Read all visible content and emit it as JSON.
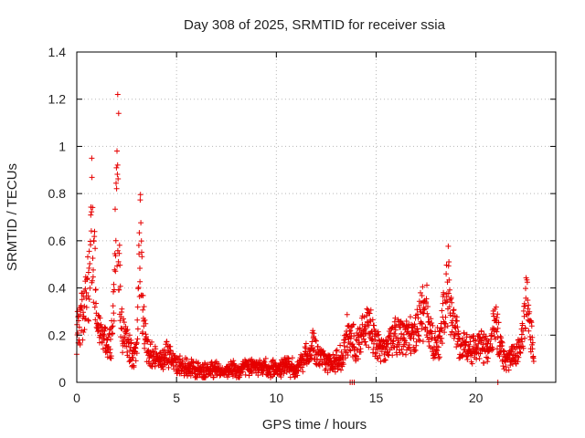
{
  "chart_data": {
    "type": "scatter",
    "title": "Day 308 of 2025, SRMTID for receiver ssia",
    "xlabel": "GPS time / hours",
    "ylabel": "SRMTID / TECUs",
    "xlim": [
      0,
      24
    ],
    "ylim": [
      0,
      1.4
    ],
    "xticks": [
      0,
      5,
      10,
      15,
      20
    ],
    "yticks": [
      0,
      0.2,
      0.4,
      0.6,
      0.8,
      1,
      1.2,
      1.4
    ],
    "xtick_labels": [
      "0",
      "5",
      "10",
      "15",
      "20"
    ],
    "ytick_labels": [
      "0",
      "0.2",
      "0.4",
      "0.6",
      "0.8",
      "1",
      "1.2",
      "1.4"
    ],
    "grid": true,
    "marker": "+",
    "color": "#e60000",
    "series": [
      {
        "name": "SRMTID",
        "envelope": {
          "x": [
            0,
            0.2,
            0.4,
            0.6,
            0.7,
            0.75,
            0.85,
            1.0,
            1.2,
            1.4,
            1.6,
            1.8,
            1.9,
            2.0,
            2.1,
            2.2,
            2.4,
            2.6,
            2.8,
            3.0,
            3.1,
            3.2,
            3.3,
            3.5,
            3.8,
            4.2,
            4.5,
            5,
            6,
            7,
            8,
            9,
            10,
            10.5,
            11,
            11.5,
            11.8,
            12.2,
            12.8,
            13.3,
            13.6,
            14,
            14.4,
            14.7,
            15,
            15.5,
            16,
            16.5,
            17,
            17.3,
            17.5,
            17.8,
            18.2,
            18.5,
            18.6,
            18.9,
            19.3,
            19.8,
            20.2,
            20.6,
            20.8,
            21.0,
            21.3,
            21.6,
            22.0,
            22.3,
            22.5,
            22.7,
            22.9
          ],
          "y": [
            0.28,
            0.35,
            0.42,
            0.55,
            0.78,
            0.93,
            0.75,
            0.4,
            0.3,
            0.25,
            0.2,
            0.28,
            0.6,
            1.2,
            0.8,
            0.35,
            0.25,
            0.2,
            0.15,
            0.2,
            0.62,
            0.87,
            0.4,
            0.2,
            0.15,
            0.12,
            0.18,
            0.1,
            0.08,
            0.08,
            0.08,
            0.1,
            0.08,
            0.1,
            0.08,
            0.16,
            0.22,
            0.15,
            0.1,
            0.15,
            0.3,
            0.2,
            0.3,
            0.32,
            0.22,
            0.2,
            0.28,
            0.25,
            0.3,
            0.4,
            0.45,
            0.24,
            0.22,
            0.5,
            0.58,
            0.3,
            0.22,
            0.2,
            0.23,
            0.18,
            0.3,
            0.36,
            0.18,
            0.13,
            0.16,
            0.25,
            0.5,
            0.3,
            0.18
          ]
        },
        "points_count": 1800,
        "spread": 0.035,
        "outliers": [
          {
            "x": 13.7,
            "y": 0.0
          },
          {
            "x": 13.8,
            "y": 0.0
          },
          {
            "x": 13.9,
            "y": 0.0
          },
          {
            "x": 21.1,
            "y": 0.0
          },
          {
            "x": 2.05,
            "y": 1.22
          },
          {
            "x": 2.1,
            "y": 1.14
          },
          {
            "x": 0.75,
            "y": 0.95
          }
        ]
      }
    ]
  }
}
